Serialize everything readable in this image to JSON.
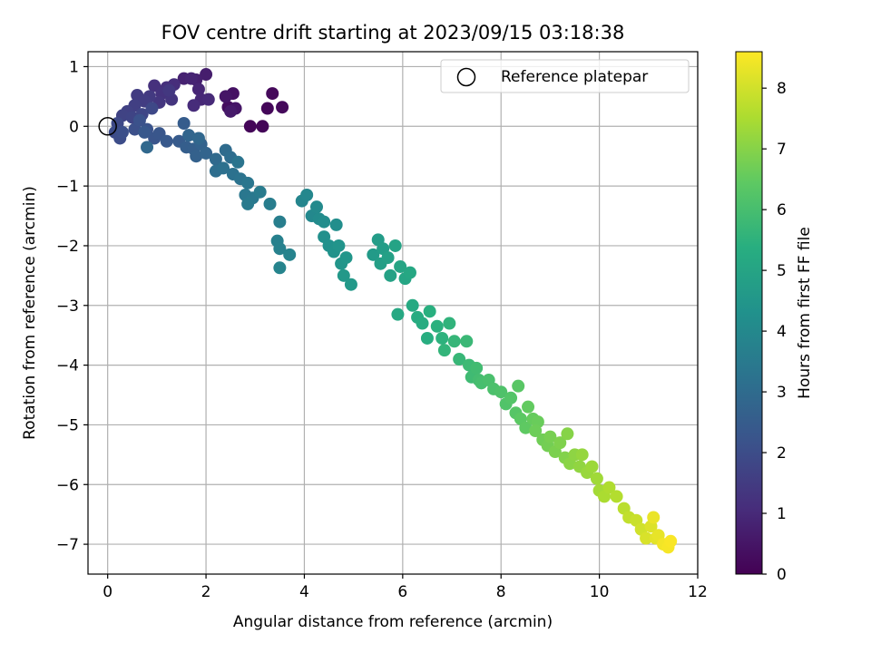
{
  "chart_data": {
    "type": "scatter",
    "title": "FOV centre drift starting at 2023/09/15 03:18:38",
    "xlabel": "Angular distance from reference (arcmin)",
    "ylabel": "Rotation from reference (arcmin)",
    "xlim": [
      -0.4,
      12
    ],
    "ylim": [
      -7.5,
      1.25
    ],
    "xticks": [
      0,
      2,
      4,
      6,
      8,
      10,
      12
    ],
    "yticks": [
      -7,
      -6,
      -5,
      -4,
      -3,
      -2,
      -1,
      0,
      1
    ],
    "grid": true,
    "legend": {
      "placement": "top-right",
      "entries": [
        "Reference platepar"
      ]
    },
    "colorbar": {
      "label": "Hours from first FF file",
      "colormap": "viridis",
      "range": [
        0,
        8.6
      ],
      "ticks": [
        0,
        1,
        2,
        3,
        4,
        5,
        6,
        7,
        8
      ]
    },
    "reference_point": {
      "x": 0,
      "y": 0
    },
    "points_columns": [
      "x",
      "y",
      "hours"
    ],
    "points": [
      [
        2.9,
        0.0,
        0.1
      ],
      [
        3.15,
        0.0,
        0.1
      ],
      [
        3.25,
        0.3,
        0.15
      ],
      [
        3.35,
        0.55,
        0.2
      ],
      [
        3.55,
        0.32,
        0.2
      ],
      [
        2.45,
        0.32,
        0.3
      ],
      [
        2.55,
        0.55,
        0.4
      ],
      [
        2.6,
        0.3,
        0.5
      ],
      [
        2.4,
        0.5,
        0.5
      ],
      [
        2.5,
        0.25,
        0.6
      ],
      [
        2.0,
        0.87,
        0.7
      ],
      [
        1.8,
        0.78,
        0.75
      ],
      [
        1.55,
        0.8,
        0.8
      ],
      [
        1.7,
        0.8,
        0.85
      ],
      [
        1.85,
        0.62,
        0.9
      ],
      [
        1.9,
        0.45,
        0.95
      ],
      [
        2.05,
        0.45,
        1.0
      ],
      [
        1.75,
        0.35,
        1.05
      ],
      [
        1.35,
        0.7,
        1.1
      ],
      [
        1.2,
        0.65,
        1.15
      ],
      [
        0.95,
        0.68,
        1.2
      ],
      [
        1.1,
        0.55,
        1.25
      ],
      [
        1.3,
        0.45,
        1.3
      ],
      [
        1.05,
        0.4,
        1.35
      ],
      [
        1.25,
        0.6,
        1.4
      ],
      [
        0.85,
        0.5,
        1.45
      ],
      [
        0.6,
        0.52,
        1.5
      ],
      [
        0.75,
        0.42,
        1.55
      ],
      [
        0.55,
        0.35,
        1.6
      ],
      [
        0.4,
        0.25,
        1.65
      ],
      [
        0.3,
        0.18,
        1.7
      ],
      [
        0.5,
        0.15,
        1.75
      ],
      [
        0.7,
        0.2,
        1.8
      ],
      [
        0.9,
        0.3,
        1.85
      ],
      [
        0.2,
        0.05,
        1.9
      ],
      [
        0.15,
        -0.1,
        1.95
      ],
      [
        0.25,
        -0.2,
        2.0
      ],
      [
        0.3,
        -0.1,
        2.05
      ],
      [
        0.55,
        -0.05,
        2.1
      ],
      [
        0.65,
        0.1,
        2.15
      ],
      [
        0.8,
        -0.05,
        2.2
      ],
      [
        0.95,
        -0.2,
        2.25
      ],
      [
        1.05,
        -0.12,
        2.3
      ],
      [
        0.75,
        -0.1,
        2.35
      ],
      [
        1.2,
        -0.25,
        2.4
      ],
      [
        1.45,
        -0.25,
        2.45
      ],
      [
        1.55,
        0.05,
        2.5
      ],
      [
        1.6,
        -0.35,
        2.55
      ],
      [
        1.75,
        -0.38,
        2.6
      ],
      [
        1.8,
        -0.5,
        2.65
      ],
      [
        1.9,
        -0.3,
        2.7
      ],
      [
        2.0,
        -0.45,
        2.75
      ],
      [
        1.65,
        -0.15,
        2.8
      ],
      [
        1.85,
        -0.2,
        2.85
      ],
      [
        0.8,
        -0.35,
        2.9
      ],
      [
        2.2,
        -0.55,
        2.95
      ],
      [
        2.4,
        -0.4,
        3.0
      ],
      [
        2.5,
        -0.52,
        3.05
      ],
      [
        2.2,
        -0.75,
        3.1
      ],
      [
        2.35,
        -0.7,
        3.15
      ],
      [
        2.55,
        -0.8,
        3.2
      ],
      [
        2.7,
        -0.88,
        3.25
      ],
      [
        2.65,
        -0.6,
        3.3
      ],
      [
        2.85,
        -0.95,
        3.35
      ],
      [
        2.8,
        -1.15,
        3.4
      ],
      [
        2.95,
        -1.2,
        3.45
      ],
      [
        2.85,
        -1.3,
        3.5
      ],
      [
        3.1,
        -1.1,
        3.55
      ],
      [
        3.3,
        -1.3,
        3.6
      ],
      [
        3.5,
        -1.6,
        3.65
      ],
      [
        3.45,
        -1.92,
        3.7
      ],
      [
        3.5,
        -2.05,
        3.75
      ],
      [
        3.7,
        -2.15,
        3.8
      ],
      [
        3.5,
        -2.37,
        3.85
      ],
      [
        3.95,
        -1.25,
        3.9
      ],
      [
        4.05,
        -1.15,
        3.95
      ],
      [
        4.15,
        -1.5,
        4.0
      ],
      [
        4.25,
        -1.35,
        4.05
      ],
      [
        4.3,
        -1.55,
        4.1
      ],
      [
        4.4,
        -1.6,
        4.15
      ],
      [
        4.65,
        -1.65,
        4.2
      ],
      [
        4.4,
        -1.85,
        4.25
      ],
      [
        4.5,
        -2.0,
        4.3
      ],
      [
        4.6,
        -2.1,
        4.35
      ],
      [
        4.7,
        -2.0,
        4.4
      ],
      [
        4.75,
        -2.3,
        4.45
      ],
      [
        4.85,
        -2.2,
        4.5
      ],
      [
        4.8,
        -2.5,
        4.55
      ],
      [
        4.95,
        -2.65,
        4.6
      ],
      [
        5.4,
        -2.15,
        4.65
      ],
      [
        5.5,
        -1.9,
        4.7
      ],
      [
        5.6,
        -2.05,
        4.75
      ],
      [
        5.55,
        -2.3,
        4.8
      ],
      [
        5.7,
        -2.2,
        4.85
      ],
      [
        5.75,
        -2.5,
        4.9
      ],
      [
        5.85,
        -2.0,
        4.95
      ],
      [
        5.95,
        -2.35,
        5.0
      ],
      [
        6.05,
        -2.55,
        5.05
      ],
      [
        6.15,
        -2.45,
        5.1
      ],
      [
        5.9,
        -3.15,
        5.15
      ],
      [
        6.2,
        -3.0,
        5.2
      ],
      [
        6.3,
        -3.2,
        5.25
      ],
      [
        6.4,
        -3.3,
        5.3
      ],
      [
        6.5,
        -3.55,
        5.35
      ],
      [
        6.55,
        -3.1,
        5.4
      ],
      [
        6.7,
        -3.35,
        5.45
      ],
      [
        6.8,
        -3.55,
        5.5
      ],
      [
        6.95,
        -3.3,
        5.55
      ],
      [
        6.85,
        -3.75,
        5.6
      ],
      [
        7.05,
        -3.6,
        5.65
      ],
      [
        7.15,
        -3.9,
        5.7
      ],
      [
        7.3,
        -3.6,
        5.75
      ],
      [
        7.35,
        -4.0,
        5.8
      ],
      [
        7.4,
        -4.2,
        5.85
      ],
      [
        7.5,
        -4.05,
        5.9
      ],
      [
        7.55,
        -4.25,
        5.95
      ],
      [
        7.6,
        -4.3,
        6.0
      ],
      [
        7.75,
        -4.25,
        6.05
      ],
      [
        7.85,
        -4.4,
        6.1
      ],
      [
        8.0,
        -4.45,
        6.15
      ],
      [
        8.1,
        -4.65,
        6.2
      ],
      [
        8.2,
        -4.55,
        6.25
      ],
      [
        8.3,
        -4.8,
        6.3
      ],
      [
        8.35,
        -4.35,
        6.35
      ],
      [
        8.4,
        -4.9,
        6.4
      ],
      [
        8.5,
        -5.05,
        6.45
      ],
      [
        8.55,
        -4.7,
        6.5
      ],
      [
        8.65,
        -4.9,
        6.55
      ],
      [
        8.75,
        -4.95,
        6.6
      ],
      [
        8.7,
        -5.1,
        6.65
      ],
      [
        8.85,
        -5.25,
        6.7
      ],
      [
        8.95,
        -5.35,
        6.75
      ],
      [
        9.0,
        -5.2,
        6.8
      ],
      [
        9.1,
        -5.45,
        6.85
      ],
      [
        9.2,
        -5.3,
        6.9
      ],
      [
        9.3,
        -5.55,
        6.95
      ],
      [
        9.35,
        -5.15,
        7.0
      ],
      [
        9.4,
        -5.65,
        7.05
      ],
      [
        9.5,
        -5.5,
        7.1
      ],
      [
        9.6,
        -5.7,
        7.15
      ],
      [
        9.65,
        -5.5,
        7.2
      ],
      [
        9.75,
        -5.8,
        7.25
      ],
      [
        9.85,
        -5.7,
        7.3
      ],
      [
        9.95,
        -5.9,
        7.35
      ],
      [
        10.0,
        -6.1,
        7.4
      ],
      [
        10.1,
        -6.2,
        7.5
      ],
      [
        10.2,
        -6.05,
        7.55
      ],
      [
        10.35,
        -6.2,
        7.6
      ],
      [
        10.5,
        -6.4,
        7.7
      ],
      [
        10.6,
        -6.55,
        7.8
      ],
      [
        10.75,
        -6.6,
        7.9
      ],
      [
        10.85,
        -6.75,
        8.0
      ],
      [
        10.95,
        -6.9,
        8.1
      ],
      [
        11.05,
        -6.7,
        8.15
      ],
      [
        11.15,
        -6.9,
        8.25
      ],
      [
        11.2,
        -6.85,
        8.3
      ],
      [
        11.1,
        -6.55,
        8.35
      ],
      [
        11.3,
        -7.0,
        8.45
      ],
      [
        11.4,
        -7.05,
        8.5
      ],
      [
        11.45,
        -6.95,
        8.55
      ]
    ]
  }
}
